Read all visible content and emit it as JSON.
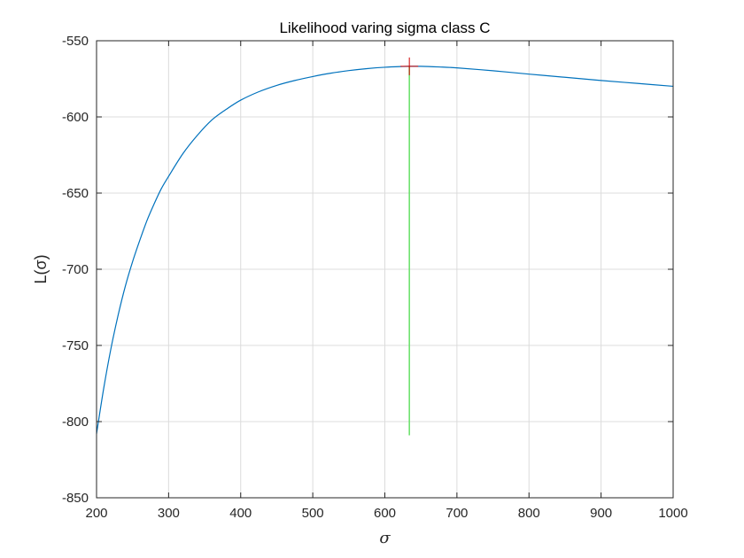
{
  "chart_data": {
    "type": "line",
    "title": "Likelihood varing sigma class C",
    "xlabel": "σ",
    "ylabel": "L(σ)",
    "xlim": [
      200,
      1000
    ],
    "ylim": [
      -850,
      -550
    ],
    "xticks": [
      "200",
      "300",
      "400",
      "500",
      "600",
      "700",
      "800",
      "900",
      "1000"
    ],
    "yticks": [
      "-550",
      "-600",
      "-650",
      "-700",
      "-750",
      "-800",
      "-850"
    ],
    "grid": true,
    "series": [
      {
        "color": "#0072BD",
        "x": [
          200,
          210,
          220,
          230,
          240,
          250,
          260,
          270,
          280,
          290,
          300,
          320,
          340,
          360,
          380,
          400,
          425,
          450,
          475,
          500,
          525,
          550,
          575,
          600,
          625,
          634,
          650,
          675,
          700,
          750,
          800,
          850,
          900,
          950,
          1000
        ],
        "y": [
          -808,
          -778,
          -752,
          -730,
          -711,
          -695,
          -681,
          -668,
          -657,
          -647,
          -639,
          -624,
          -612,
          -602,
          -595,
          -589,
          -583.5,
          -579.3,
          -576.1,
          -573.5,
          -571.3,
          -569.6,
          -568.3,
          -567.4,
          -566.9,
          -566.8,
          -566.8,
          -567.2,
          -567.8,
          -569.7,
          -571.9,
          -574.0,
          -576.1,
          -578.0,
          -579.9
        ]
      }
    ],
    "max_marker": {
      "x": 634,
      "y": -566.8,
      "color": "#D00000"
    },
    "vline": {
      "x": 634,
      "y_from": -809,
      "y_to": -566.8,
      "color": "#66E066"
    }
  }
}
